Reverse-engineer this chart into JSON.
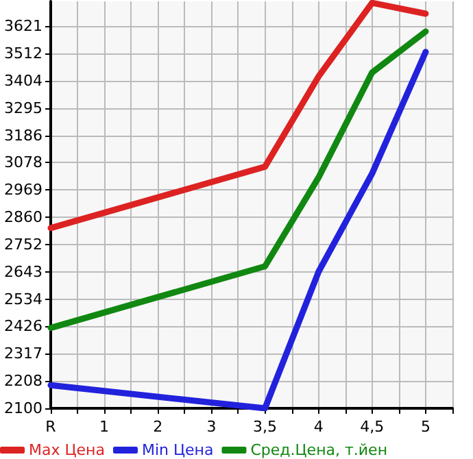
{
  "chart_data": {
    "type": "line",
    "categories": [
      "R",
      "1",
      "2",
      "3",
      "3,5",
      "4",
      "4,5",
      "5"
    ],
    "series": [
      {
        "name": "Max Цена",
        "color": "#dd2222",
        "values": [
          2817,
          null,
          null,
          null,
          3061,
          3420,
          3713,
          3670
        ]
      },
      {
        "name": "Min Цена",
        "color": "#2222dd",
        "values": [
          2192,
          null,
          null,
          null,
          2100,
          2643,
          3034,
          3518
        ]
      },
      {
        "name": "Сред.Цена, т.йен",
        "color": "#118811",
        "values": [
          2420,
          null,
          null,
          null,
          2665,
          3018,
          3436,
          3599
        ]
      }
    ],
    "ylim": [
      2100,
      3719
    ],
    "yticks": [
      2100,
      2208,
      2317,
      2426,
      2534,
      2643,
      2752,
      2860,
      2969,
      3078,
      3186,
      3295,
      3404,
      3512,
      3621
    ],
    "grid": true,
    "legend": "bottom",
    "marker": "none",
    "line_style": "solid"
  }
}
